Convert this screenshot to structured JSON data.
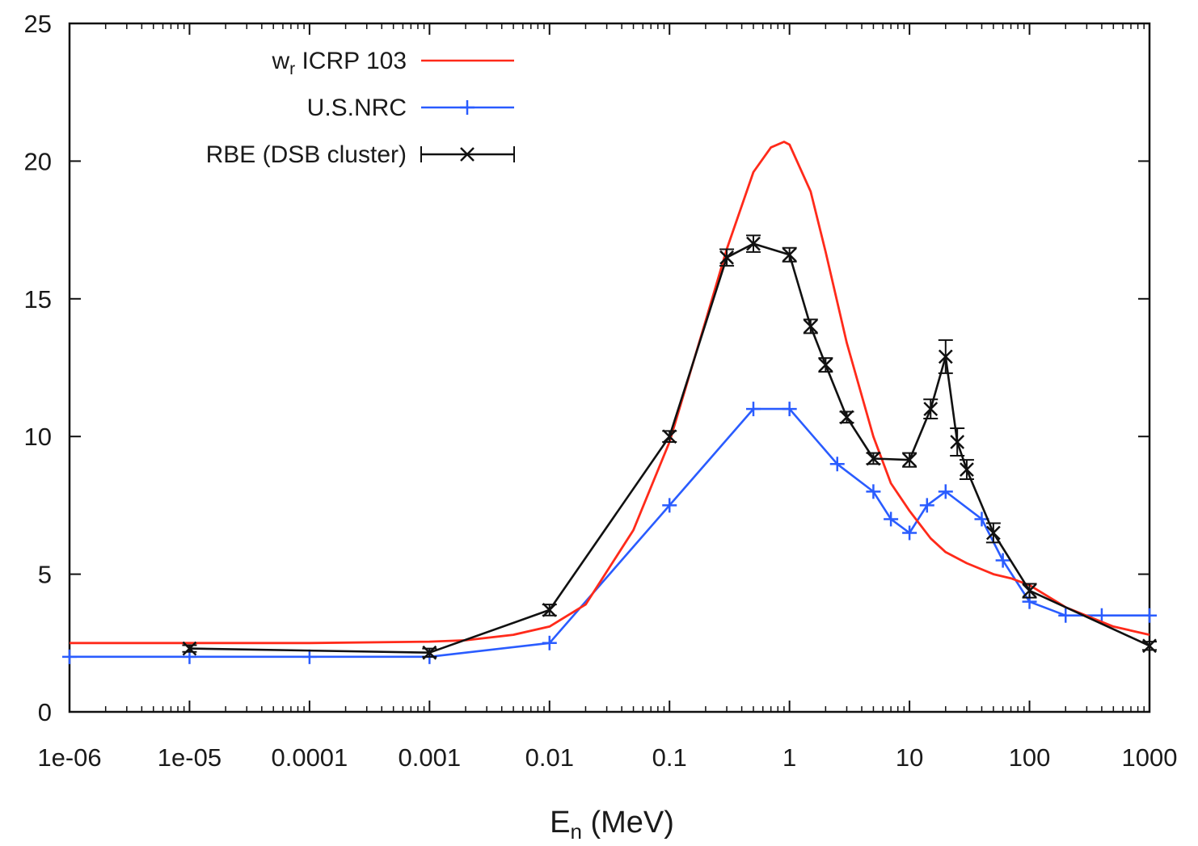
{
  "chart_data": {
    "type": "line",
    "xscale": "log",
    "xlim": [
      1e-06,
      1000
    ],
    "ylim": [
      0,
      25
    ],
    "xticks": [
      "1e-06",
      "1e-05",
      "0.0001",
      "0.001",
      "0.01",
      "0.1",
      "1",
      "10",
      "100",
      "1000"
    ],
    "yticks": [
      "0",
      "5",
      "10",
      "15",
      "20",
      "25"
    ],
    "xlabel": "E",
    "xlabel_sub": "n",
    "xlabel_unit": " (MeV)",
    "ylabel": "",
    "title": "",
    "grid": false,
    "legend_position": "top-left",
    "series": [
      {
        "name": "w",
        "name_sub": "r",
        "name_rest": " ICRP 103",
        "color": "#ff2a1a",
        "style": "line",
        "x": [
          1e-06,
          1e-05,
          0.0001,
          0.001,
          0.002,
          0.005,
          0.01,
          0.02,
          0.05,
          0.1,
          0.2,
          0.3,
          0.5,
          0.7,
          0.9,
          1,
          1.5,
          2,
          3,
          5,
          7,
          10,
          15,
          20,
          30,
          50,
          70,
          100,
          200,
          500,
          1000
        ],
        "y": [
          2.5,
          2.5,
          2.5,
          2.55,
          2.6,
          2.8,
          3.1,
          3.9,
          6.6,
          9.8,
          14.2,
          16.8,
          19.6,
          20.5,
          20.7,
          20.6,
          18.9,
          16.7,
          13.4,
          10.0,
          8.3,
          7.3,
          6.3,
          5.8,
          5.4,
          5.0,
          4.85,
          4.6,
          3.8,
          3.1,
          2.8
        ]
      },
      {
        "name": "U.S.NRC",
        "color": "#2a5cff",
        "style": "line-plus",
        "x": [
          1e-06,
          1e-05,
          0.0001,
          0.001,
          0.01,
          0.1,
          0.5,
          1,
          2.5,
          5,
          7,
          10,
          14,
          20,
          40,
          60,
          100,
          200,
          400,
          1000
        ],
        "y": [
          2.0,
          2.0,
          2.0,
          2.0,
          2.5,
          7.5,
          11.0,
          11.0,
          9.0,
          8.0,
          7.0,
          6.5,
          7.5,
          8.0,
          7.0,
          5.5,
          4.0,
          3.5,
          3.5,
          3.5
        ]
      },
      {
        "name": "RBE (DSB cluster)",
        "color": "#111111",
        "style": "line-errorbar",
        "x": [
          1e-05,
          0.001,
          0.01,
          0.1,
          0.3,
          0.5,
          1,
          1.5,
          2,
          3,
          5,
          10,
          15,
          20,
          25,
          30,
          50,
          100,
          1000
        ],
        "y": [
          2.3,
          2.15,
          3.7,
          10.0,
          16.5,
          17.0,
          16.6,
          14.0,
          12.6,
          10.7,
          9.2,
          9.15,
          11.0,
          12.9,
          9.8,
          8.8,
          6.5,
          4.4,
          2.4
        ],
        "err": [
          0.12,
          0.15,
          0.2,
          0.2,
          0.3,
          0.3,
          0.25,
          0.25,
          0.25,
          0.2,
          0.2,
          0.25,
          0.35,
          0.6,
          0.5,
          0.35,
          0.35,
          0.25,
          0.15
        ]
      }
    ]
  }
}
